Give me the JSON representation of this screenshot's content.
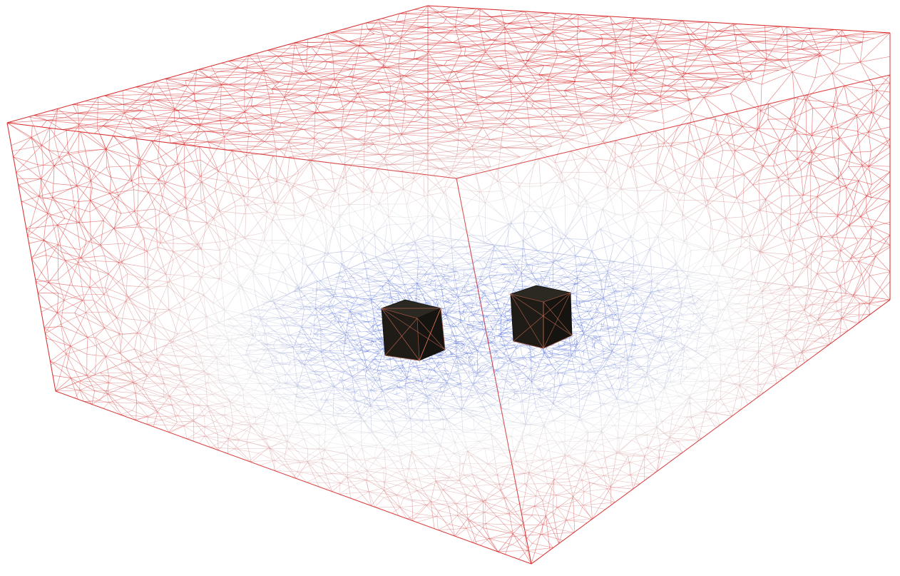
{
  "scene": {
    "description_kind": "tetrahedral-mesh-wireframe",
    "colormap": {
      "near": "#3b5bdb",
      "mid": "#dcdcdc",
      "far": "#d62728"
    },
    "objects": [
      {
        "kind": "cube",
        "color": "#1f1c18"
      },
      {
        "kind": "cube",
        "color": "#1f1c18"
      }
    ]
  }
}
